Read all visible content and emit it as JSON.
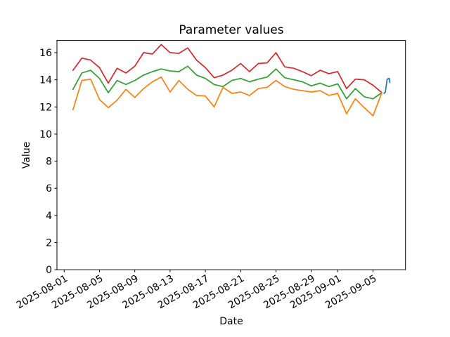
{
  "chart_data": {
    "type": "line",
    "title": "Parameter values",
    "xlabel": "Date",
    "ylabel": "Value",
    "grid": false,
    "legend": false,
    "ylim": [
      0,
      16.9
    ],
    "xlim_days": [
      -0.82,
      38.68
    ],
    "x_origin_date": "2025-08-01",
    "y_ticks": [
      {
        "value": 0,
        "label": "0"
      },
      {
        "value": 2,
        "label": "2"
      },
      {
        "value": 4,
        "label": "4"
      },
      {
        "value": 6,
        "label": "6"
      },
      {
        "value": 8,
        "label": "8"
      },
      {
        "value": 10,
        "label": "10"
      },
      {
        "value": 12,
        "label": "12"
      },
      {
        "value": 14,
        "label": "14"
      },
      {
        "value": 16,
        "label": "16"
      }
    ],
    "x_ticks": [
      {
        "day": 0,
        "label": "2025-08-01"
      },
      {
        "day": 4,
        "label": "2025-08-05"
      },
      {
        "day": 8,
        "label": "2025-08-09"
      },
      {
        "day": 12,
        "label": "2025-08-13"
      },
      {
        "day": 16,
        "label": "2025-08-17"
      },
      {
        "day": 20,
        "label": "2025-08-21"
      },
      {
        "day": 24,
        "label": "2025-08-25"
      },
      {
        "day": 28,
        "label": "2025-08-29"
      },
      {
        "day": 31,
        "label": "2025-09-01"
      },
      {
        "day": 35,
        "label": "2025-09-05"
      }
    ],
    "dates": [
      "2025-08-02",
      "2025-08-03",
      "2025-08-04",
      "2025-08-05",
      "2025-08-06",
      "2025-08-07",
      "2025-08-08",
      "2025-08-09",
      "2025-08-10",
      "2025-08-11",
      "2025-08-12",
      "2025-08-13",
      "2025-08-14",
      "2025-08-15",
      "2025-08-16",
      "2025-08-17",
      "2025-08-18",
      "2025-08-19",
      "2025-08-20",
      "2025-08-21",
      "2025-08-22",
      "2025-08-23",
      "2025-08-24",
      "2025-08-25",
      "2025-08-26",
      "2025-08-27",
      "2025-08-28",
      "2025-08-29",
      "2025-08-30",
      "2025-08-31",
      "2025-09-01",
      "2025-09-02",
      "2025-09-03",
      "2025-09-04",
      "2025-09-05",
      "2025-09-06"
    ],
    "x_days": [
      1,
      2,
      3,
      4,
      5,
      6,
      7,
      8,
      9,
      10,
      11,
      12,
      13,
      14,
      15,
      16,
      17,
      18,
      19,
      20,
      21,
      22,
      23,
      24,
      25,
      26,
      27,
      28,
      29,
      30,
      31,
      32,
      33,
      34,
      35,
      36
    ],
    "series": [
      {
        "name": "series-1-red",
        "color": "#d62728",
        "values": [
          14.7,
          15.6,
          15.45,
          14.9,
          13.75,
          14.85,
          14.5,
          15.0,
          16.0,
          15.9,
          16.6,
          16.0,
          15.95,
          16.35,
          15.45,
          14.9,
          14.15,
          14.35,
          14.7,
          15.2,
          14.6,
          15.2,
          15.25,
          16.0,
          14.95,
          14.85,
          14.6,
          14.3,
          14.7,
          14.45,
          14.6,
          13.35,
          14.05,
          14.0,
          13.6,
          13.05
        ]
      },
      {
        "name": "series-2-green",
        "color": "#2ca02c",
        "values": [
          13.3,
          14.5,
          14.7,
          14.1,
          13.05,
          13.95,
          13.65,
          13.95,
          14.35,
          14.6,
          14.8,
          14.65,
          14.6,
          15.0,
          14.35,
          14.1,
          13.65,
          13.5,
          13.95,
          14.1,
          13.85,
          14.05,
          14.2,
          14.8,
          14.15,
          14.0,
          13.85,
          13.55,
          13.75,
          13.5,
          13.7,
          12.6,
          13.35,
          12.75,
          12.6,
          13.05
        ]
      },
      {
        "name": "series-3-orange",
        "color": "#ff7f0e",
        "values": [
          11.8,
          13.95,
          14.05,
          12.55,
          11.95,
          12.5,
          13.3,
          12.7,
          13.35,
          13.85,
          14.2,
          13.1,
          13.95,
          13.3,
          12.85,
          12.8,
          12.0,
          13.45,
          13.0,
          13.1,
          12.85,
          13.35,
          13.45,
          13.95,
          13.5,
          13.3,
          13.2,
          13.1,
          13.2,
          12.85,
          13.0,
          11.5,
          12.6,
          11.95,
          11.35,
          13.05
        ]
      },
      {
        "name": "series-4-blue",
        "color": "#1f77b4",
        "x": [
          36.25,
          36.4,
          36.6,
          36.85,
          36.9
        ],
        "values": [
          13.0,
          13.1,
          14.05,
          14.1,
          13.8
        ]
      }
    ]
  }
}
